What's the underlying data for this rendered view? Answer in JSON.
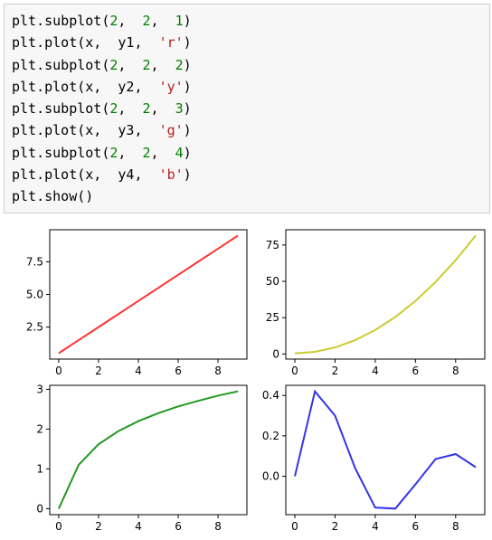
{
  "code_cell": {
    "lines": [
      {
        "func": "plt.subplot(",
        "args": [
          {
            "t": "2",
            "k": "num"
          },
          {
            "t": ",  ",
            "k": "p"
          },
          {
            "t": "2",
            "k": "num"
          },
          {
            "t": ",  ",
            "k": "p"
          },
          {
            "t": "1",
            "k": "num"
          }
        ],
        "close": ")"
      },
      {
        "func": "plt.plot(x,  y1,  ",
        "args": [
          {
            "t": "'r'",
            "k": "str"
          }
        ],
        "close": ")"
      },
      {
        "func": "plt.subplot(",
        "args": [
          {
            "t": "2",
            "k": "num"
          },
          {
            "t": ",  ",
            "k": "p"
          },
          {
            "t": "2",
            "k": "num"
          },
          {
            "t": ",  ",
            "k": "p"
          },
          {
            "t": "2",
            "k": "num"
          }
        ],
        "close": ")"
      },
      {
        "func": "plt.plot(x,  y2,  ",
        "args": [
          {
            "t": "'y'",
            "k": "str"
          }
        ],
        "close": ")"
      },
      {
        "func": "plt.subplot(",
        "args": [
          {
            "t": "2",
            "k": "num"
          },
          {
            "t": ",  ",
            "k": "p"
          },
          {
            "t": "2",
            "k": "num"
          },
          {
            "t": ",  ",
            "k": "p"
          },
          {
            "t": "3",
            "k": "num"
          }
        ],
        "close": ")"
      },
      {
        "func": "plt.plot(x,  y3,  ",
        "args": [
          {
            "t": "'g'",
            "k": "str"
          }
        ],
        "close": ")"
      },
      {
        "func": "plt.subplot(",
        "args": [
          {
            "t": "2",
            "k": "num"
          },
          {
            "t": ",  ",
            "k": "p"
          },
          {
            "t": "2",
            "k": "num"
          },
          {
            "t": ",  ",
            "k": "p"
          },
          {
            "t": "4",
            "k": "num"
          }
        ],
        "close": ")"
      },
      {
        "func": "plt.plot(x,  y4,  ",
        "args": [
          {
            "t": "'b'",
            "k": "str"
          }
        ],
        "close": ")"
      },
      {
        "func": "plt.show()",
        "args": [],
        "close": ""
      }
    ]
  },
  "chart_data": [
    {
      "type": "line",
      "subplot": 1,
      "color": "#ff3333",
      "x": [
        0,
        1,
        2,
        3,
        4,
        5,
        6,
        7,
        8,
        9
      ],
      "values": [
        0.5,
        1.5,
        2.5,
        3.5,
        4.5,
        5.5,
        6.5,
        7.5,
        8.5,
        9.5
      ],
      "xticks": [
        0,
        2,
        4,
        6,
        8
      ],
      "yticks": [
        2.5,
        5.0,
        7.5
      ],
      "ytick_labels": [
        "2.5",
        "5.0",
        "7.5"
      ],
      "xtick_labels": [
        "0",
        "2",
        "4",
        "6",
        "8"
      ],
      "xlim": [
        -0.45,
        9.45
      ],
      "ylim": [
        0.05,
        9.95
      ]
    },
    {
      "type": "line",
      "subplot": 2,
      "color": "#cccc33",
      "x": [
        0,
        1,
        2,
        3,
        4,
        5,
        6,
        7,
        8,
        9
      ],
      "values": [
        0.5,
        1.5,
        4.5,
        9.5,
        16.5,
        25.5,
        36.5,
        49.5,
        64.5,
        81.5
      ],
      "xticks": [
        0,
        2,
        4,
        6,
        8
      ],
      "yticks": [
        0,
        25,
        50,
        75
      ],
      "ytick_labels": [
        "0",
        "25",
        "50",
        "75"
      ],
      "xtick_labels": [
        "0",
        "2",
        "4",
        "6",
        "8"
      ],
      "xlim": [
        -0.45,
        9.45
      ],
      "ylim": [
        -3.5,
        85.5
      ]
    },
    {
      "type": "line",
      "subplot": 3,
      "color": "#229922",
      "x": [
        0,
        1,
        2,
        3,
        4,
        5,
        6,
        7,
        8,
        9
      ],
      "values": [
        0,
        1.1,
        1.62,
        1.95,
        2.2,
        2.4,
        2.57,
        2.71,
        2.84,
        2.95
      ],
      "xticks": [
        0,
        2,
        4,
        6,
        8
      ],
      "yticks": [
        0,
        1,
        2,
        3
      ],
      "ytick_labels": [
        "0",
        "1",
        "2",
        "3"
      ],
      "xtick_labels": [
        "0",
        "2",
        "4",
        "6",
        "8"
      ],
      "xlim": [
        -0.45,
        9.45
      ],
      "ylim": [
        -0.15,
        3.1
      ]
    },
    {
      "type": "line",
      "subplot": 4,
      "color": "#3333ee",
      "x": [
        0,
        1,
        2,
        3,
        4,
        5,
        6,
        7,
        8,
        9
      ],
      "values": [
        0.0,
        0.42,
        0.3,
        0.04,
        -0.155,
        -0.16,
        -0.04,
        0.085,
        0.11,
        0.045
      ],
      "xticks": [
        0,
        2,
        4,
        6,
        8
      ],
      "yticks": [
        0.0,
        0.2,
        0.4
      ],
      "ytick_labels": [
        "0.0",
        "0.2",
        "0.4"
      ],
      "xtick_labels": [
        "0",
        "2",
        "4",
        "6",
        "8"
      ],
      "xlim": [
        -0.45,
        9.45
      ],
      "ylim": [
        -0.19,
        0.45
      ]
    }
  ]
}
